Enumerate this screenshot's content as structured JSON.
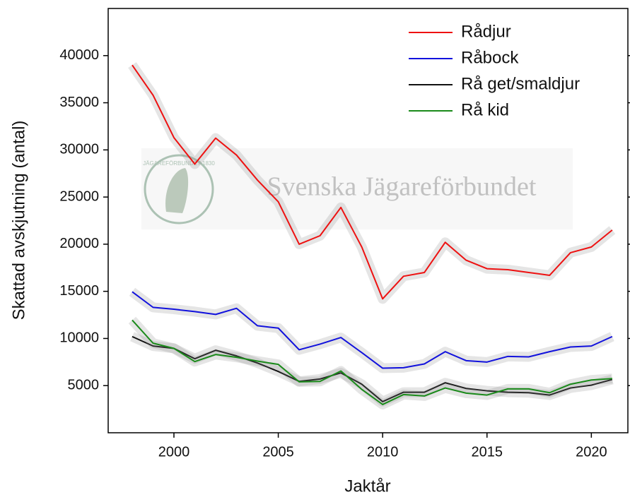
{
  "chart_data": {
    "type": "line",
    "xlabel": "Jaktår",
    "ylabel": "Skattad avskjutning (antal)",
    "watermark": "Svenska Jägareförbundet",
    "logo_text": "JÄGAREFÖRBUNDET 1830",
    "x": [
      1998,
      1999,
      2000,
      2001,
      2002,
      2003,
      2004,
      2005,
      2006,
      2007,
      2008,
      2009,
      2010,
      2011,
      2012,
      2013,
      2014,
      2015,
      2016,
      2017,
      2018,
      2019,
      2020,
      2021
    ],
    "series": [
      {
        "name": "Rådjur",
        "color": "#ee1111",
        "values": [
          39000,
          35800,
          31300,
          28500,
          31250,
          29450,
          26800,
          24500,
          20000,
          20900,
          23900,
          19700,
          14200,
          16600,
          17000,
          20200,
          18300,
          17400,
          17300,
          17000,
          16700,
          19100,
          19700,
          21500
        ]
      },
      {
        "name": "Råbock",
        "color": "#1111dd",
        "values": [
          14950,
          13300,
          13100,
          12850,
          12550,
          13200,
          11350,
          11100,
          8800,
          9400,
          10100,
          8500,
          6850,
          6900,
          7300,
          8600,
          7650,
          7500,
          8100,
          8050,
          8600,
          9100,
          9200,
          10200
        ]
      },
      {
        "name": "Rå get/smaldjur",
        "color": "#111111",
        "values": [
          10200,
          9200,
          8950,
          7850,
          8750,
          8150,
          7400,
          6500,
          5450,
          5700,
          6350,
          5150,
          3300,
          4300,
          4300,
          5300,
          4700,
          4450,
          4300,
          4250,
          4000,
          4750,
          5050,
          5650
        ]
      },
      {
        "name": "Rå kid",
        "color": "#1a8a1a",
        "values": [
          11950,
          9500,
          8950,
          7550,
          8300,
          8000,
          7600,
          7250,
          5400,
          5450,
          6550,
          4600,
          3000,
          4050,
          3900,
          4750,
          4200,
          4000,
          4650,
          4650,
          4250,
          5150,
          5600,
          5750
        ]
      }
    ],
    "xlim": [
      1996.85,
      2021.75
    ],
    "xticks": [
      2000,
      2005,
      2010,
      2015,
      2020
    ],
    "ylim": [
      0,
      45000
    ],
    "yticks": [
      5000,
      10000,
      15000,
      20000,
      25000,
      30000,
      35000,
      40000
    ],
    "legend": "upper right",
    "grid": false
  }
}
